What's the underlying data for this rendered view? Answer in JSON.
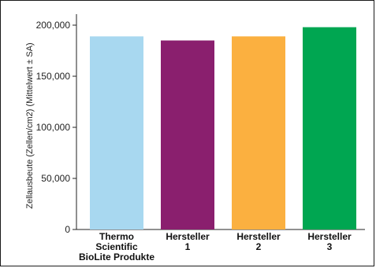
{
  "chart_data": {
    "type": "bar",
    "categories": [
      [
        "Thermo",
        "Scientific",
        "BioLite Produkte"
      ],
      [
        "Hersteller",
        "1"
      ],
      [
        "Hersteller",
        "2"
      ],
      [
        "Hersteller",
        "3"
      ]
    ],
    "values": [
      189000,
      185000,
      189000,
      198000
    ],
    "colors": [
      "#a8d8f0",
      "#8a1f6e",
      "#fbb040",
      "#00a651"
    ],
    "ylabel": "Zellausbeute (Zellen/cm2) (Mittelwert ± SA)",
    "xlabel": "",
    "ylim": [
      0,
      200000
    ],
    "yticks": [
      0,
      50000,
      100000,
      150000,
      200000
    ],
    "ytick_labels": [
      "0",
      "50,000",
      "100,000",
      "150,000",
      "200,000"
    ],
    "grid": false,
    "legend": "none"
  }
}
